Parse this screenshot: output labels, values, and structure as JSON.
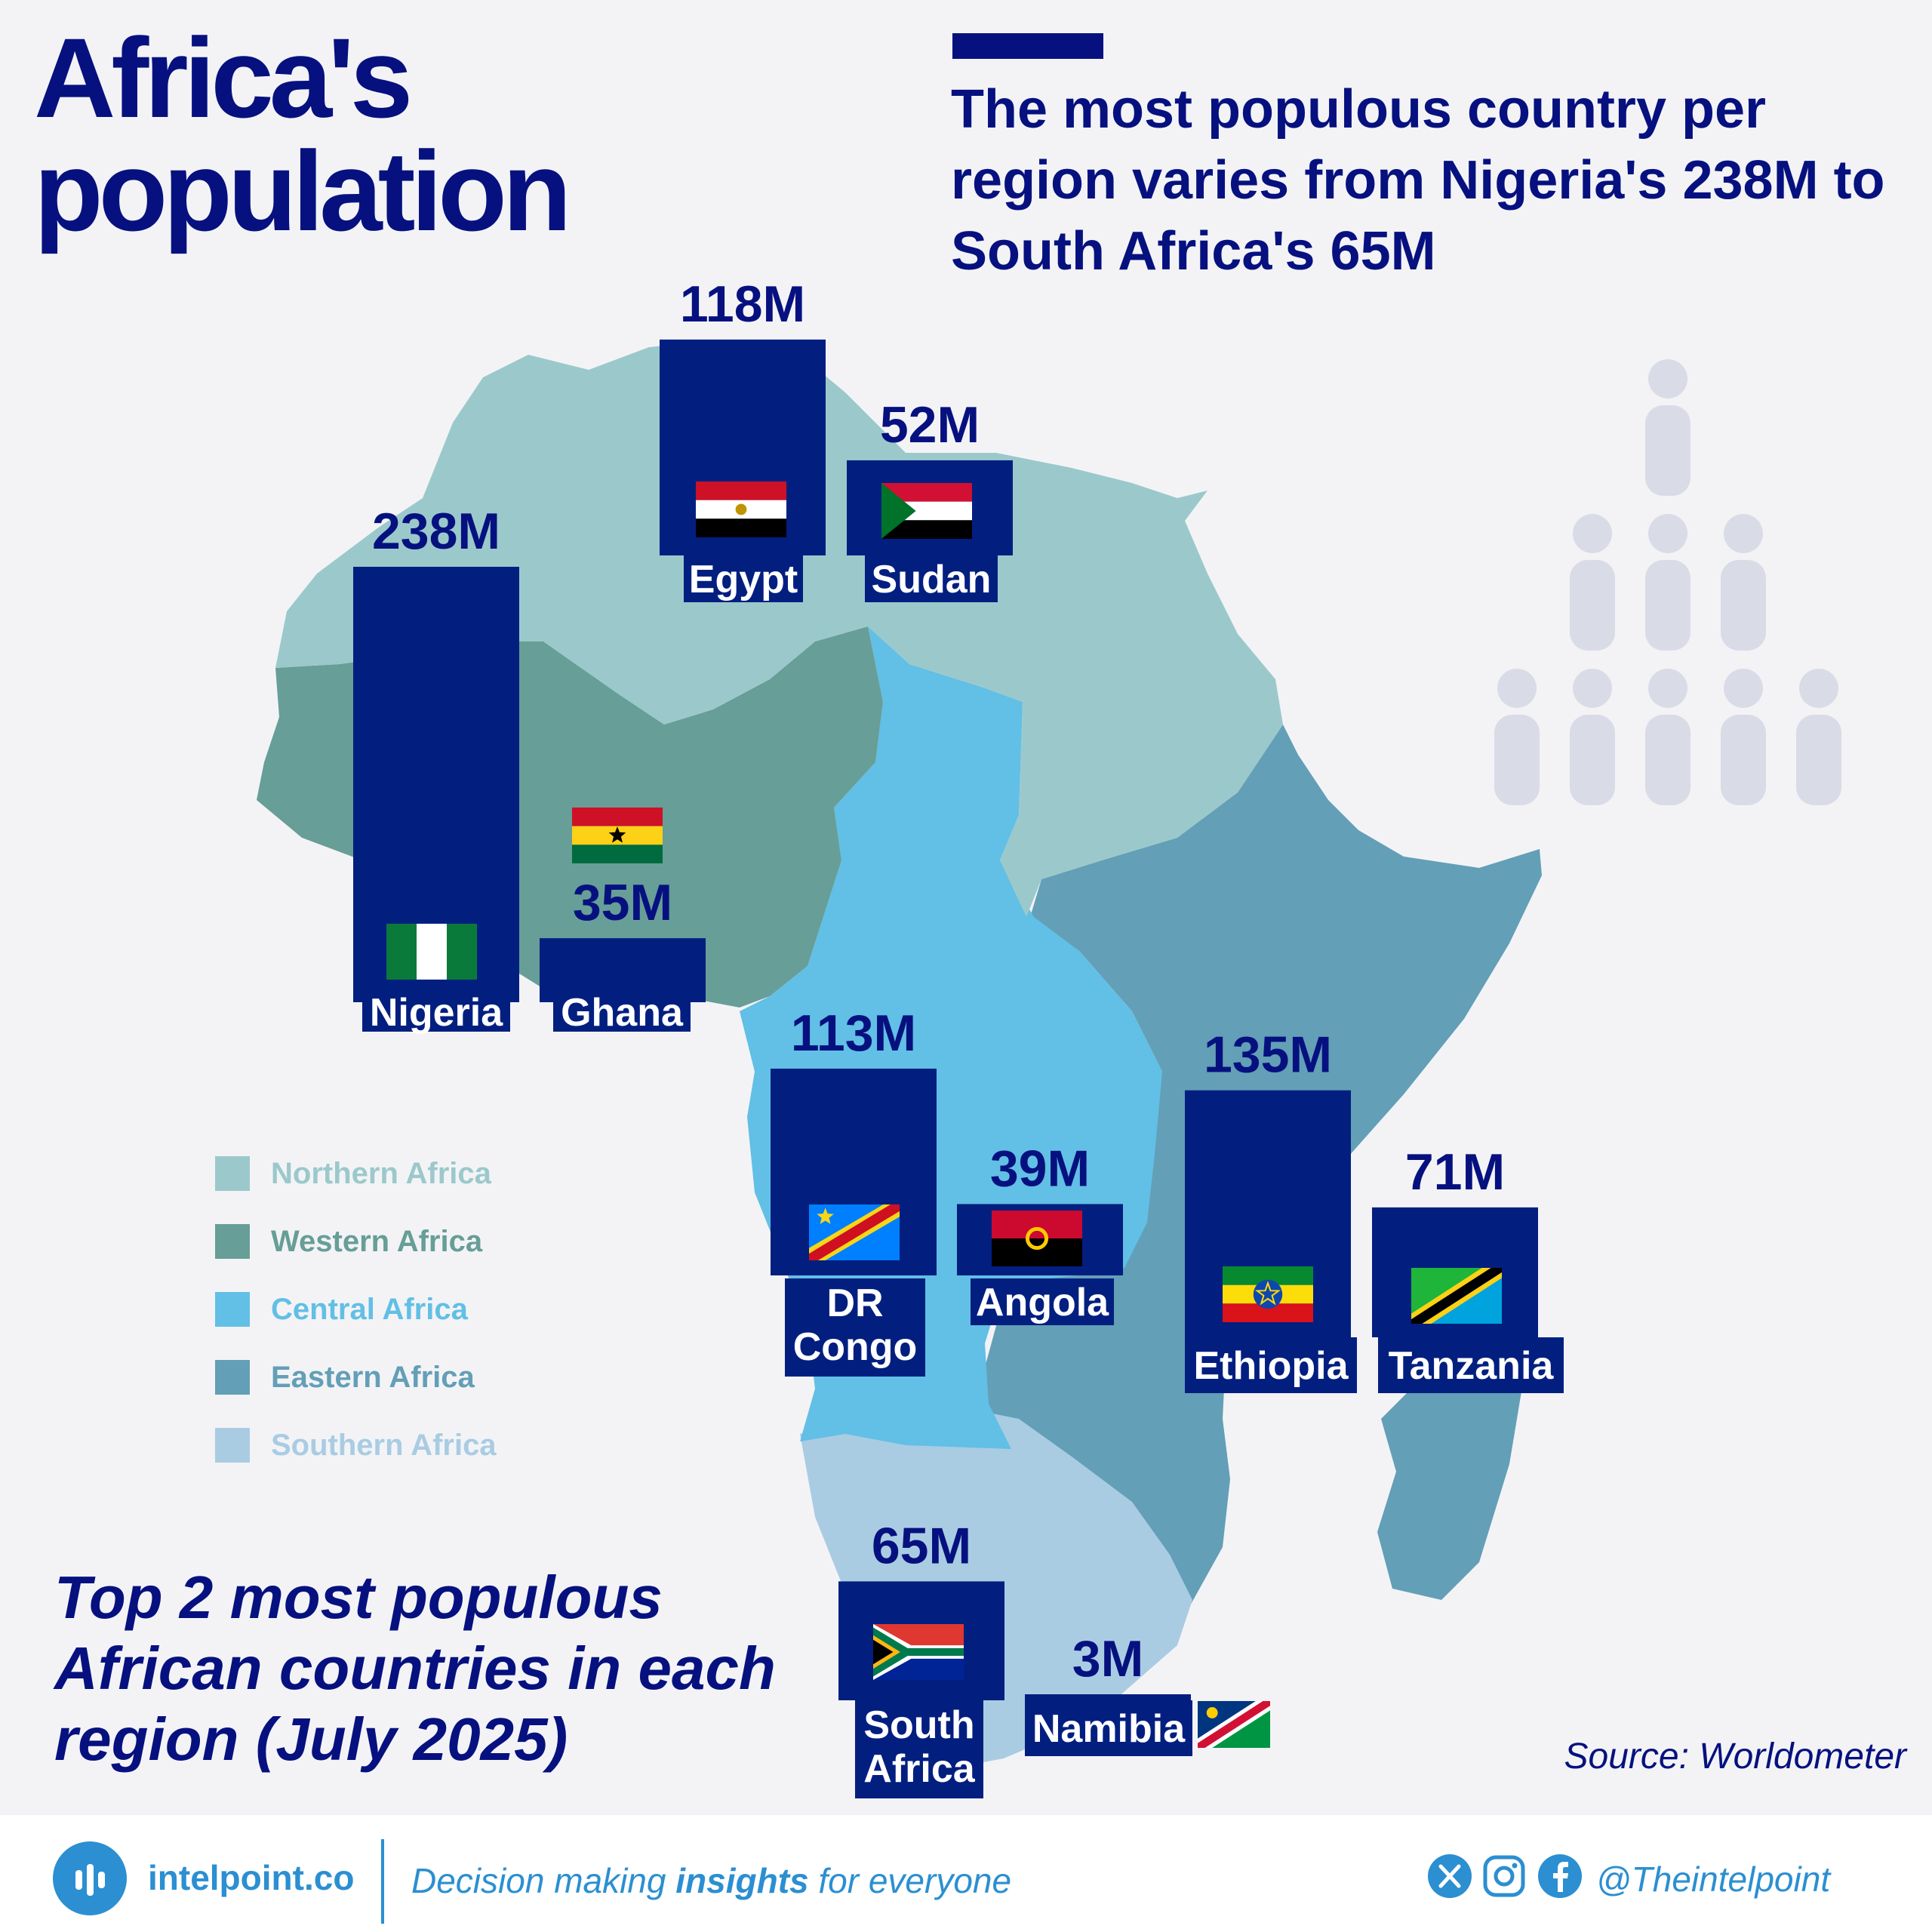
{
  "title": "Africa's population",
  "headline": "The most populous country per region varies from Nigeria's 238M to South Africa's 65M",
  "subtitle": "Top 2 most populous African countries in each region (July 2025)",
  "source": "Source: Worldometer",
  "colors": {
    "navy": "#06117f",
    "bar": "#021f80",
    "Northern Africa": "#9bc9cb",
    "Western Africa": "#679e97",
    "Central Africa": "#62bfe5",
    "Eastern Africa": "#639fb7",
    "Southern Africa": "#a9cce3",
    "people-icon": "#d9dbe6"
  },
  "legend": [
    {
      "label": "Northern Africa"
    },
    {
      "label": "Western Africa"
    },
    {
      "label": "Central Africa"
    },
    {
      "label": "Eastern Africa"
    },
    {
      "label": "Southern Africa"
    }
  ],
  "chart_data": {
    "type": "bar",
    "unit": "M",
    "regions": [
      "Northern Africa",
      "Western Africa",
      "Central Africa",
      "Eastern Africa",
      "Southern Africa"
    ],
    "countries": [
      {
        "name": "Nigeria",
        "region": "Western Africa",
        "value": 238,
        "label": "238M",
        "flag": "nigeria-flag"
      },
      {
        "name": "Ghana",
        "region": "Western Africa",
        "value": 35,
        "label": "35M",
        "flag": "ghana-flag"
      },
      {
        "name": "Egypt",
        "region": "Northern Africa",
        "value": 118,
        "label": "118M",
        "flag": "egypt-flag"
      },
      {
        "name": "Sudan",
        "region": "Northern Africa",
        "value": 52,
        "label": "52M",
        "flag": "sudan-flag"
      },
      {
        "name": "DR Congo",
        "region": "Central Africa",
        "value": 113,
        "label": "113M",
        "flag": "dr-congo-flag"
      },
      {
        "name": "Angola",
        "region": "Central Africa",
        "value": 39,
        "label": "39M",
        "flag": "angola-flag"
      },
      {
        "name": "Ethiopia",
        "region": "Eastern Africa",
        "value": 135,
        "label": "135M",
        "flag": "ethiopia-flag"
      },
      {
        "name": "Tanzania",
        "region": "Eastern Africa",
        "value": 71,
        "label": "71M",
        "flag": "tanzania-flag"
      },
      {
        "name": "South Africa",
        "region": "Southern Africa",
        "value": 65,
        "label": "65M",
        "flag": "south-africa-flag"
      },
      {
        "name": "Namibia",
        "region": "Southern Africa",
        "value": 3,
        "label": "3M",
        "flag": "namibia-flag"
      }
    ]
  },
  "footer": {
    "brand": "intelpoint.co",
    "tagline_before": "Decision making ",
    "tagline_bold": "insights",
    "tagline_after": " for everyone",
    "handle": "@Theintelpoint",
    "social_icons": [
      "x-icon",
      "instagram-icon",
      "facebook-icon"
    ]
  }
}
